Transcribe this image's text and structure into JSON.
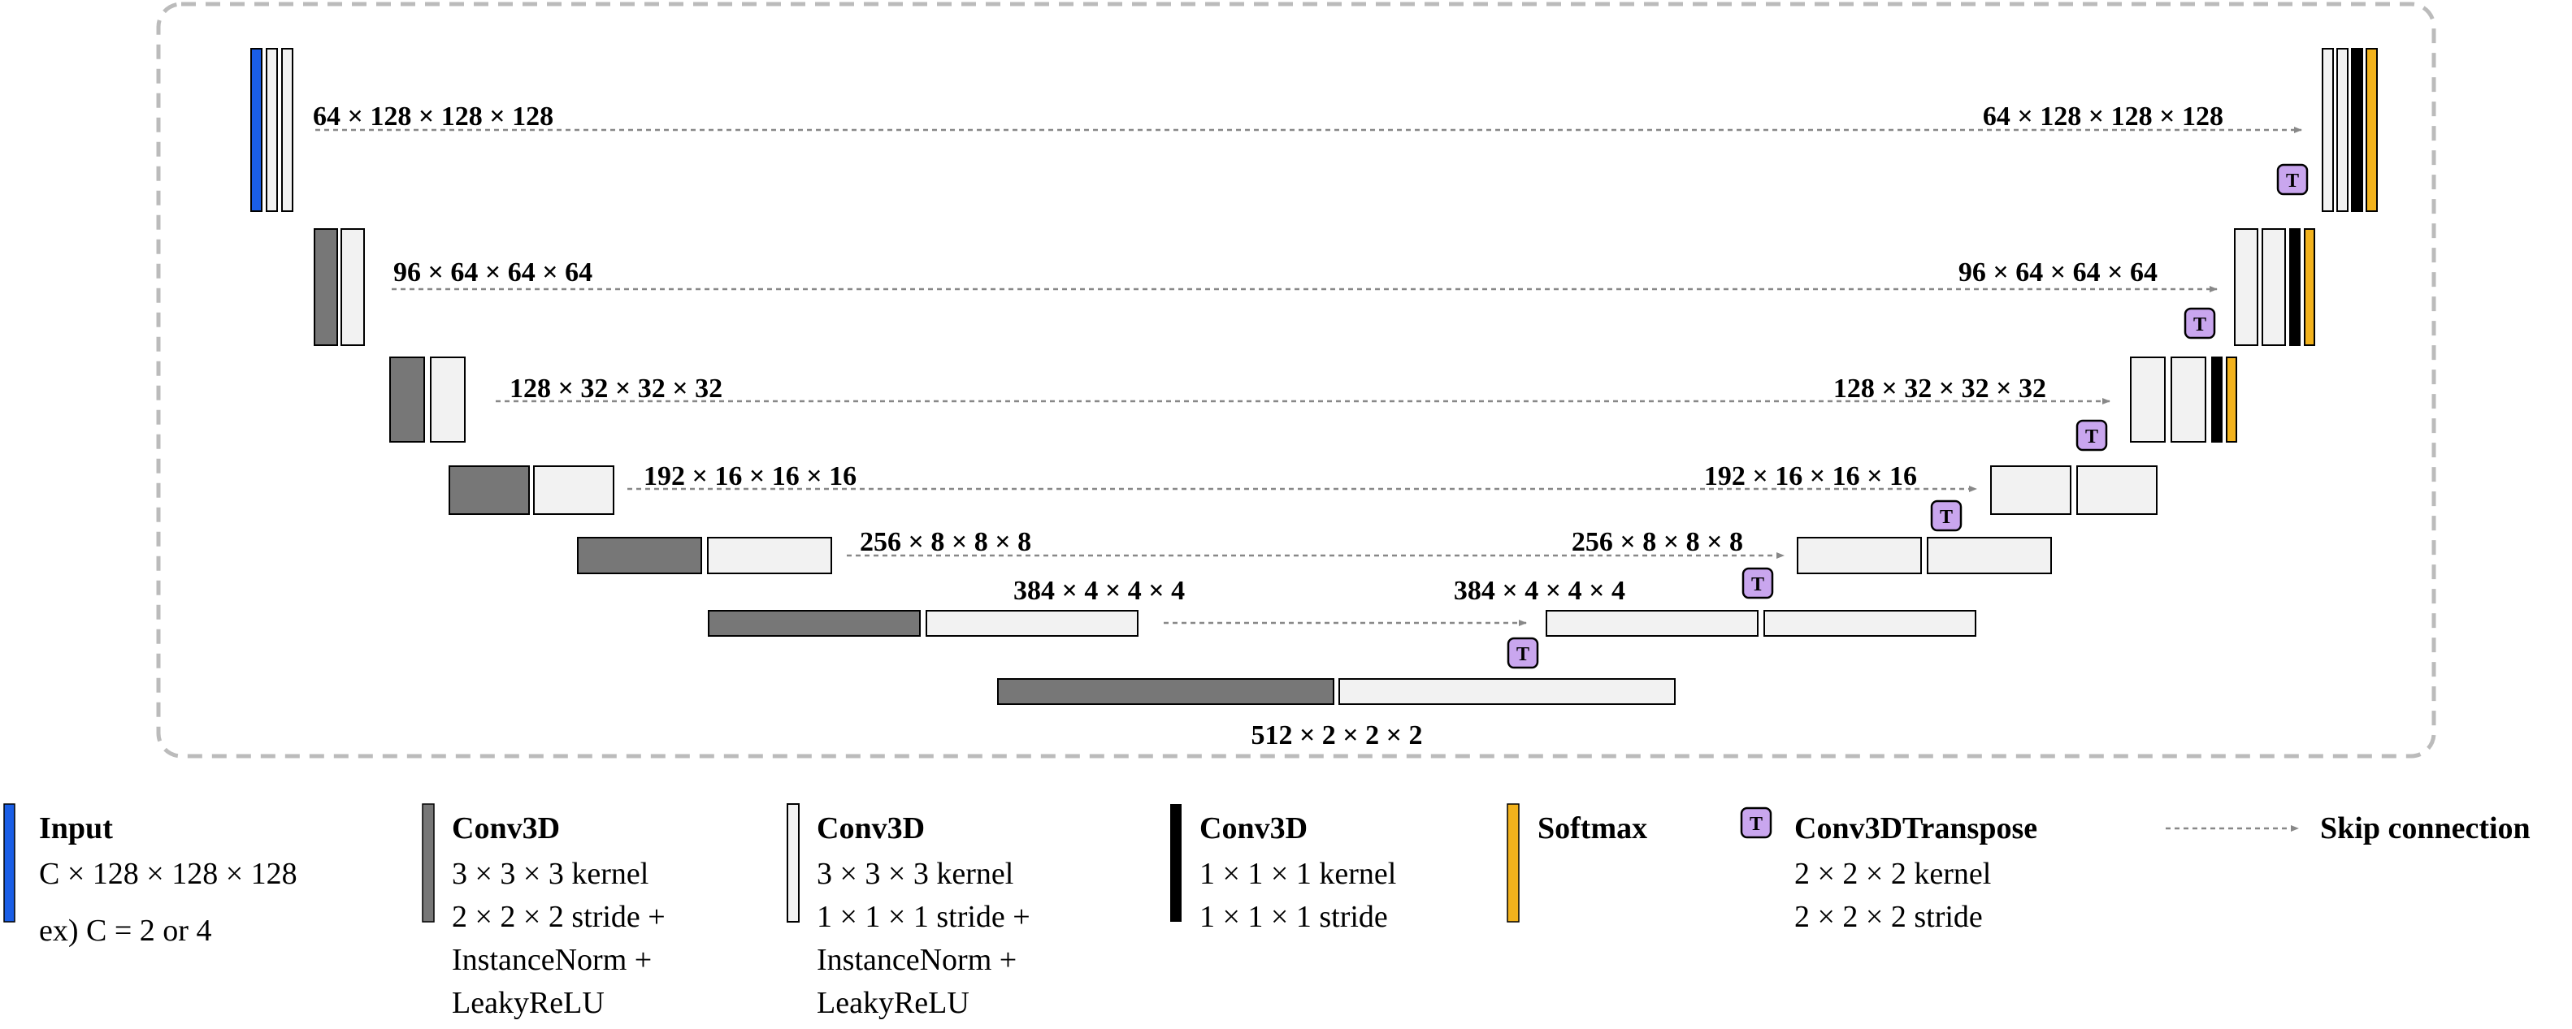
{
  "colors": {
    "input": "#1a5ee6",
    "conv_stride2": "#777777",
    "conv_stride1": "#f2f2f2",
    "conv_1x1": "#000000",
    "softmax": "#f2b21c",
    "transpose": "#c9a6ee",
    "frame": "#bbbbbb",
    "arrow": "#888888"
  },
  "encoder_labels": [
    "64 × 128 × 128 × 128",
    "96 × 64 × 64 × 64",
    "128 × 32 × 32 × 32",
    "192 × 16 × 16 × 16",
    "256 × 8 × 8 × 8",
    "384 × 4 × 4 × 4"
  ],
  "decoder_labels": [
    "64 × 128 × 128 × 128",
    "96 × 64 × 64 × 64",
    "128 × 32 × 32 × 32",
    "192 × 16 × 16 × 16",
    "256 × 8 × 8 × 8",
    "384 × 4 × 4 × 4"
  ],
  "bottleneck_label": "512 × 2 × 2 × 2",
  "transpose_letter": "T",
  "legend": [
    {
      "id": "input",
      "icon": "blue-bar-icon",
      "title": "Input",
      "lines": [
        "C × 128 × 128 × 128",
        "ex) C = 2 or 4"
      ]
    },
    {
      "id": "conv-stride2",
      "icon": "dark-gray-bar-icon",
      "title": "Conv3D",
      "lines": [
        "3 × 3 × 3 kernel",
        "2 × 2 × 2 stride +",
        "InstanceNorm +",
        "LeakyReLU"
      ]
    },
    {
      "id": "conv-stride1",
      "icon": "light-gray-bar-icon",
      "title": "Conv3D",
      "lines": [
        "3 × 3 × 3 kernel",
        "1 × 1 × 1 stride +",
        "InstanceNorm +",
        "LeakyReLU"
      ]
    },
    {
      "id": "conv-1x1",
      "icon": "black-bar-icon",
      "title": "Conv3D",
      "lines": [
        "1 × 1 × 1 kernel",
        "1 × 1 × 1 stride"
      ]
    },
    {
      "id": "softmax",
      "icon": "orange-bar-icon",
      "title": "Softmax",
      "lines": []
    },
    {
      "id": "transpose",
      "icon": "transpose-t-icon",
      "title": "Conv3DTranspose",
      "lines": [
        "2 × 2 × 2 kernel",
        "2 × 2 × 2 stride"
      ]
    },
    {
      "id": "skip",
      "icon": "dashed-arrow-icon",
      "title": "Skip connection",
      "lines": []
    }
  ]
}
